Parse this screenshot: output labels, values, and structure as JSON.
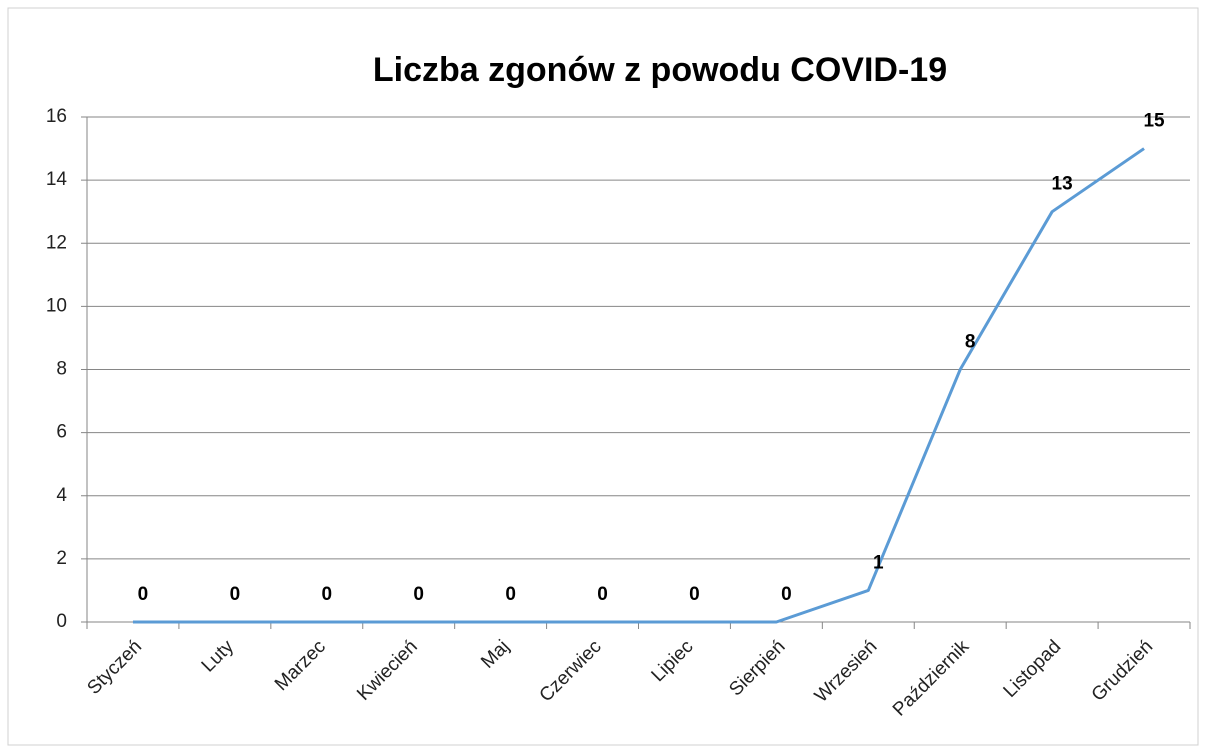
{
  "chart_data": {
    "type": "line",
    "title": "Liczba zgonów z powodu COVID-19",
    "categories": [
      "Styczeń",
      "Luty",
      "Marzec",
      "Kwiecień",
      "Maj",
      "Czerwiec",
      "Lipiec",
      "Sierpień",
      "Wrzesień",
      "Październik",
      "Listopad",
      "Grudzień"
    ],
    "values": [
      0,
      0,
      0,
      0,
      0,
      0,
      0,
      0,
      1,
      8,
      13,
      15
    ],
    "color": "#5b9bd5",
    "ylim": [
      0,
      16
    ],
    "yticks": [
      0,
      2,
      4,
      6,
      8,
      10,
      12,
      14,
      16
    ],
    "grid": true
  }
}
